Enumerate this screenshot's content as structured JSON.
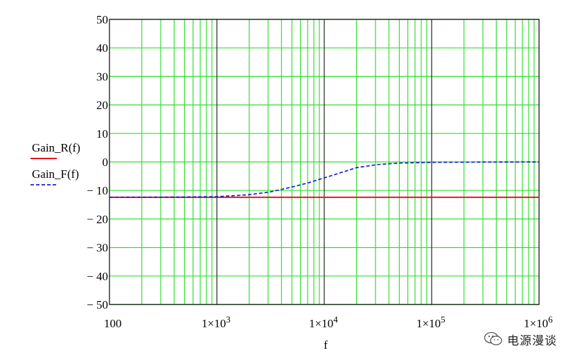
{
  "chart_data": {
    "type": "line",
    "xlabel": "f",
    "x_scale": "log",
    "xlim": [
      100,
      1000000
    ],
    "ylim": [
      -50,
      50
    ],
    "grid": true,
    "legend_position": "left",
    "x_ticks": [
      {
        "value": 100,
        "label": "100"
      },
      {
        "value": 1000,
        "label": "1×10",
        "exp": "3"
      },
      {
        "value": 10000,
        "label": "1×10",
        "exp": "4"
      },
      {
        "value": 100000,
        "label": "1×10",
        "exp": "5"
      },
      {
        "value": 1000000,
        "label": "1×10",
        "exp": "6"
      }
    ],
    "y_ticks": [
      {
        "value": 50,
        "label": "50"
      },
      {
        "value": 40,
        "label": "40"
      },
      {
        "value": 30,
        "label": "30"
      },
      {
        "value": 20,
        "label": "20"
      },
      {
        "value": 10,
        "label": "10"
      },
      {
        "value": 0,
        "label": "0"
      },
      {
        "value": -10,
        "label": "− 10"
      },
      {
        "value": -20,
        "label": "− 20"
      },
      {
        "value": -30,
        "label": "− 30"
      },
      {
        "value": -40,
        "label": "− 40"
      },
      {
        "value": -50,
        "label": "− 50"
      }
    ],
    "series": [
      {
        "name": "Gain_R(f)",
        "color": "#e8141c",
        "style": "solid",
        "x": [
          100,
          1000,
          10000,
          100000,
          1000000
        ],
        "y": [
          -12.4,
          -12.4,
          -12.4,
          -12.4,
          -12.4
        ]
      },
      {
        "name": "Gain_F(f)",
        "color": "#1a1ad6",
        "style": "dashed",
        "x": [
          100,
          316,
          1000,
          2000,
          3162,
          5000,
          7000,
          10000,
          15000,
          20000,
          31623,
          50000,
          100000,
          316228,
          1000000
        ],
        "y": [
          -12.4,
          -12.35,
          -12.2,
          -11.5,
          -10.5,
          -8.8,
          -7.4,
          -5.6,
          -3.5,
          -2.0,
          -0.9,
          -0.4,
          -0.15,
          -0.05,
          0
        ]
      }
    ]
  },
  "watermark": {
    "icon": "wechat-icon",
    "text": "电源漫谈"
  }
}
